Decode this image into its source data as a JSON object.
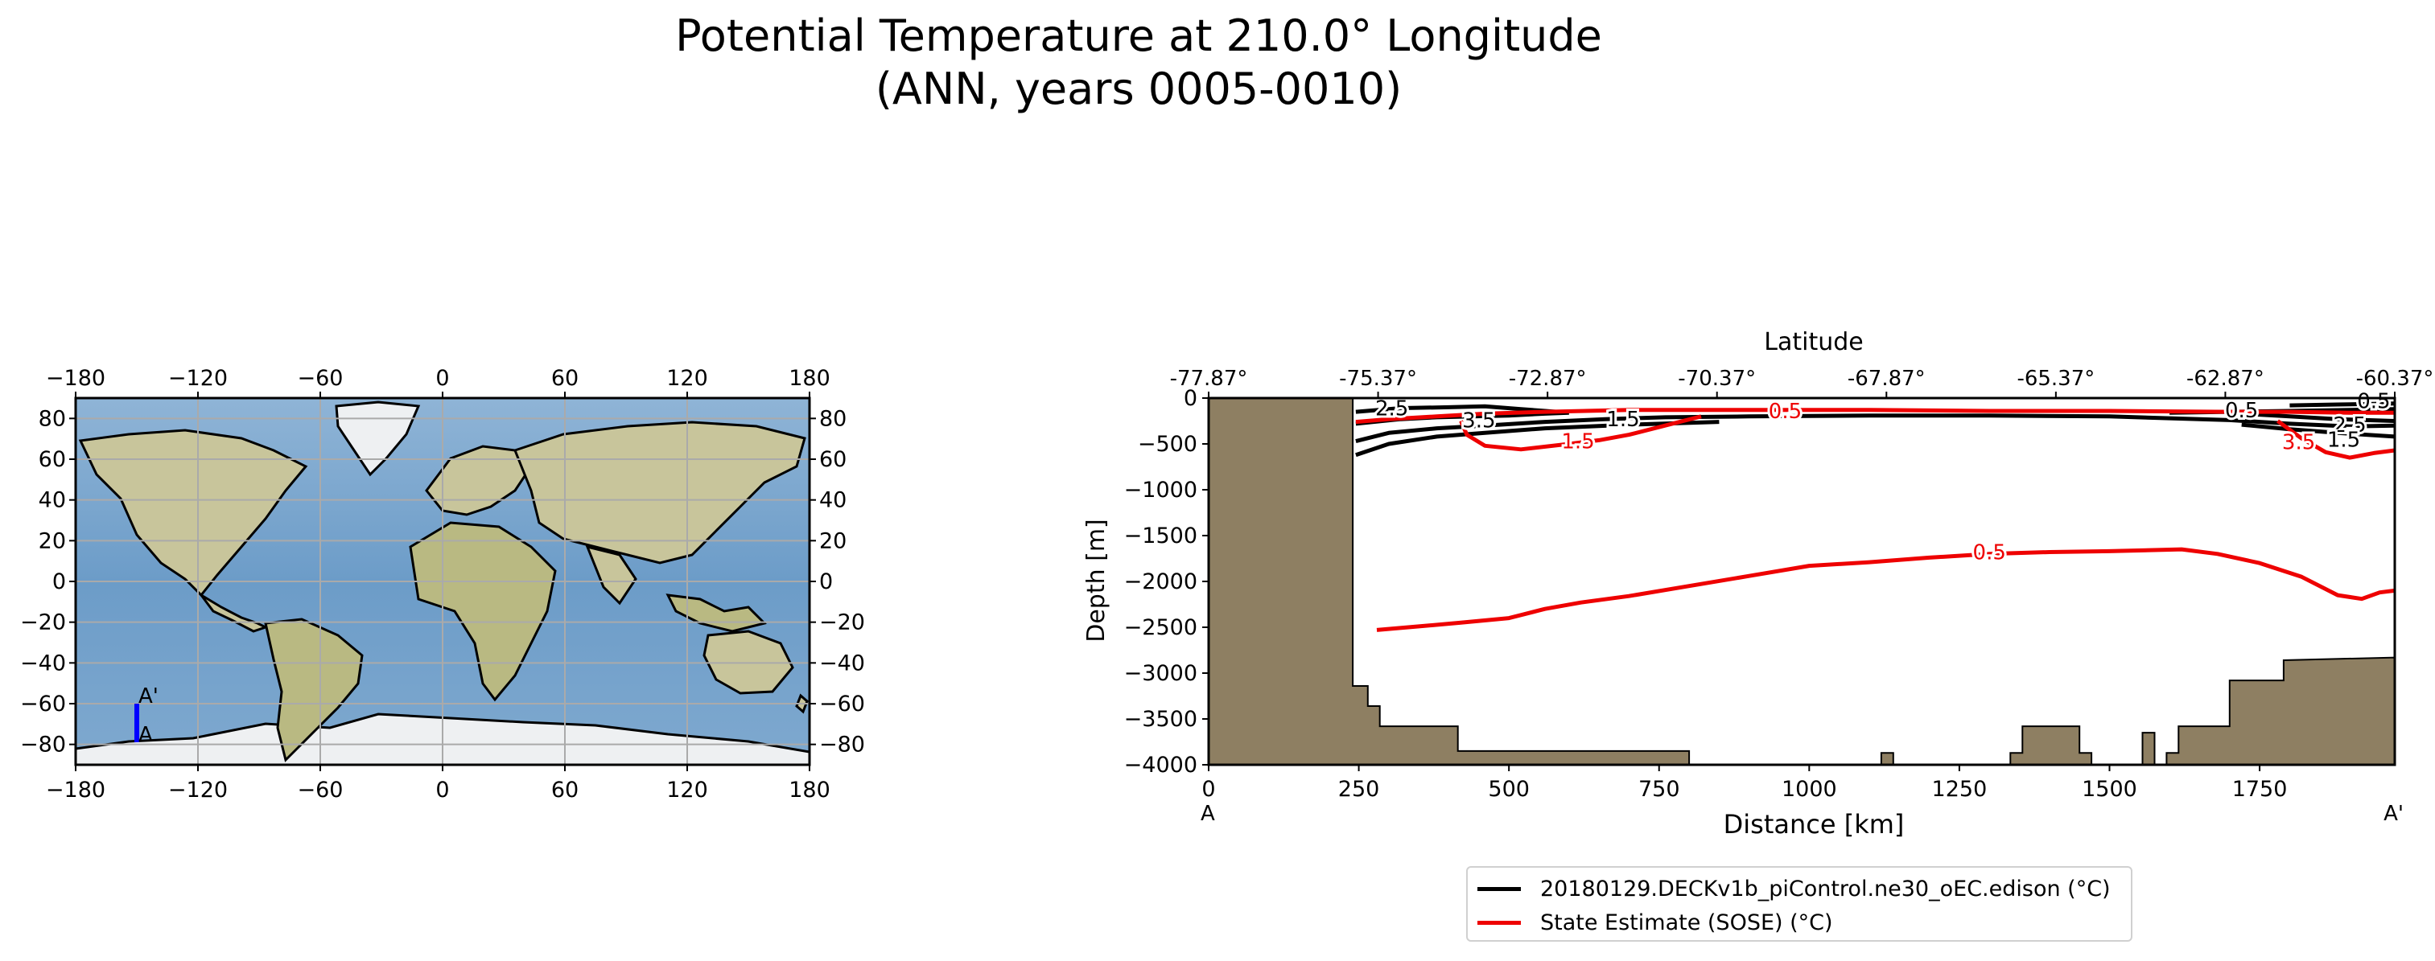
{
  "title": {
    "line1": "Potential Temperature at 210.0° Longitude",
    "line2": "(ANN, years 0005-0010)"
  },
  "colors": {
    "model": "#000000",
    "observations": "#ee0000",
    "land": "#8e7f62",
    "section_line": "#0000ff"
  },
  "map": {
    "x_ticks": [
      -180,
      -120,
      -60,
      0,
      60,
      120,
      180
    ],
    "y_ticks": [
      80,
      60,
      40,
      20,
      0,
      -20,
      -40,
      -60,
      -80
    ],
    "section_start_label": "A",
    "section_end_label": "A'"
  },
  "chart_data": {
    "type": "line",
    "subtype": "contour-transect",
    "xlabel": "Distance [km]",
    "ylabel": "Depth [m]",
    "top_axis_label": "Latitude",
    "xlim": [
      0,
      1975
    ],
    "ylim": [
      -4000,
      0
    ],
    "x_ticks": [
      0,
      250,
      500,
      750,
      1000,
      1250,
      1500,
      1750
    ],
    "y_ticks": [
      0,
      -500,
      -1000,
      -1500,
      -2000,
      -2500,
      -3000,
      -3500,
      -4000
    ],
    "latitude_ticks": [
      "-77.87°",
      "-75.37°",
      "-72.87°",
      "-70.37°",
      "-67.87°",
      "-65.37°",
      "-62.87°",
      "-60.37°"
    ],
    "start_label": "A",
    "end_label": "A'",
    "series": [
      {
        "name": "20180129.DECKv1b_piControl.ne30_oEC.edison (°C)",
        "color": "#000000",
        "contours": [
          {
            "level": "2.5",
            "points": [
              [
                245,
                -150
              ],
              [
                320,
                -110
              ],
              [
                400,
                -100
              ],
              [
                460,
                -90
              ],
              [
                520,
                -120
              ],
              [
                580,
                -150
              ]
            ]
          },
          {
            "level": "3.5",
            "points": [
              [
                245,
                -280
              ],
              [
                320,
                -230
              ],
              [
                380,
                -210
              ],
              [
                440,
                -200
              ],
              [
                500,
                -190
              ],
              [
                560,
                -170
              ],
              [
                600,
                -160
              ]
            ]
          },
          {
            "level": "1.5",
            "points": [
              [
                245,
                -470
              ],
              [
                300,
                -380
              ],
              [
                380,
                -330
              ],
              [
                460,
                -300
              ],
              [
                560,
                -260
              ],
              [
                660,
                -230
              ],
              [
                760,
                -210
              ],
              [
                900,
                -200
              ],
              [
                1100,
                -190
              ],
              [
                1300,
                -190
              ],
              [
                1500,
                -200
              ],
              [
                1600,
                -220
              ],
              [
                1700,
                -240
              ],
              [
                1800,
                -280
              ],
              [
                1900,
                -310
              ],
              [
                1975,
                -300
              ]
            ]
          },
          {
            "level": "1.5b",
            "points": [
              [
                245,
                -620
              ],
              [
                300,
                -500
              ],
              [
                380,
                -420
              ],
              [
                460,
                -380
              ],
              [
                560,
                -330
              ],
              [
                700,
                -290
              ],
              [
                850,
                -260
              ]
            ]
          },
          {
            "level": "0.5",
            "points": [
              [
                1600,
                -160
              ],
              [
                1700,
                -150
              ],
              [
                1800,
                -140
              ],
              [
                1900,
                -130
              ],
              [
                1975,
                -120
              ]
            ]
          },
          {
            "level": "2.5b",
            "points": [
              [
                1720,
                -170
              ],
              [
                1800,
                -200
              ],
              [
                1880,
                -230
              ],
              [
                1975,
                -250
              ]
            ]
          },
          {
            "level": "1.5c",
            "points": [
              [
                1720,
                -290
              ],
              [
                1800,
                -340
              ],
              [
                1880,
                -380
              ],
              [
                1975,
                -420
              ]
            ]
          },
          {
            "level": "0.5b",
            "points": [
              [
                1800,
                -80
              ],
              [
                1880,
                -70
              ],
              [
                1975,
                -60
              ]
            ]
          }
        ]
      },
      {
        "name": "State Estimate (SOSE) (°C)",
        "color": "#ee0000",
        "contours": [
          {
            "level": "0.5",
            "points": [
              [
                280,
                -2530
              ],
              [
                350,
                -2490
              ],
              [
                420,
                -2450
              ],
              [
                500,
                -2400
              ],
              [
                560,
                -2300
              ],
              [
                620,
                -2230
              ],
              [
                700,
                -2160
              ],
              [
                800,
                -2050
              ],
              [
                900,
                -1940
              ],
              [
                1000,
                -1830
              ],
              [
                1100,
                -1790
              ],
              [
                1200,
                -1740
              ],
              [
                1300,
                -1700
              ],
              [
                1400,
                -1680
              ],
              [
                1500,
                -1670
              ],
              [
                1620,
                -1650
              ],
              [
                1680,
                -1700
              ],
              [
                1750,
                -1800
              ],
              [
                1820,
                -1950
              ],
              [
                1880,
                -2150
              ],
              [
                1920,
                -2190
              ],
              [
                1950,
                -2120
              ],
              [
                1975,
                -2100
              ]
            ]
          },
          {
            "level": "0.5s",
            "points": [
              [
                245,
                -260
              ],
              [
                300,
                -230
              ],
              [
                380,
                -200
              ],
              [
                460,
                -170
              ],
              [
                560,
                -150
              ],
              [
                700,
                -130
              ],
              [
                900,
                -130
              ],
              [
                1100,
                -130
              ],
              [
                1300,
                -140
              ],
              [
                1500,
                -140
              ],
              [
                1700,
                -150
              ],
              [
                1800,
                -150
              ],
              [
                1900,
                -160
              ],
              [
                1975,
                -160
              ]
            ]
          },
          {
            "level": "1.5",
            "points": [
              [
                420,
                -250
              ],
              [
                430,
                -400
              ],
              [
                460,
                -520
              ],
              [
                520,
                -560
              ],
              [
                600,
                -500
              ],
              [
                650,
                -460
              ],
              [
                700,
                -400
              ],
              [
                760,
                -300
              ],
              [
                820,
                -200
              ]
            ]
          },
          {
            "level": "3.5",
            "points": [
              [
                1780,
                -250
              ],
              [
                1820,
                -440
              ],
              [
                1860,
                -590
              ],
              [
                1900,
                -650
              ],
              [
                1940,
                -600
              ],
              [
                1975,
                -570
              ]
            ]
          }
        ]
      }
    ],
    "contour_labels": [
      {
        "text": "2.5",
        "x": 305,
        "y": -110,
        "color": "#000000"
      },
      {
        "text": "3.5",
        "x": 450,
        "y": -240,
        "color": "#000000"
      },
      {
        "text": "1.5",
        "x": 690,
        "y": -230,
        "color": "#000000"
      },
      {
        "text": "0.5",
        "x": 1720,
        "y": -130,
        "color": "#000000"
      },
      {
        "text": "2.5",
        "x": 1900,
        "y": -290,
        "color": "#000000"
      },
      {
        "text": "1.5",
        "x": 1890,
        "y": -450,
        "color": "#000000"
      },
      {
        "text": "0.5",
        "x": 1940,
        "y": -30,
        "color": "#000000"
      },
      {
        "text": "0.5",
        "x": 960,
        "y": -140,
        "color": "#ee0000"
      },
      {
        "text": "1.5",
        "x": 615,
        "y": -470,
        "color": "#ee0000"
      },
      {
        "text": "0.5",
        "x": 1300,
        "y": -1680,
        "color": "#ee0000"
      },
      {
        "text": "3.5",
        "x": 1815,
        "y": -480,
        "color": "#ee0000"
      }
    ],
    "bathymetry": [
      [
        0,
        0
      ],
      [
        240,
        0
      ],
      [
        240,
        -3140
      ],
      [
        265,
        -3140
      ],
      [
        265,
        -3360
      ],
      [
        285,
        -3360
      ],
      [
        285,
        -3580
      ],
      [
        415,
        -3580
      ],
      [
        415,
        -3850
      ],
      [
        800,
        -3850
      ],
      [
        800,
        -4000
      ],
      [
        1120,
        -4000
      ],
      [
        1120,
        -3870
      ],
      [
        1140,
        -3870
      ],
      [
        1140,
        -4000
      ],
      [
        1335,
        -4000
      ],
      [
        1335,
        -3870
      ],
      [
        1355,
        -3870
      ],
      [
        1355,
        -3580
      ],
      [
        1450,
        -3580
      ],
      [
        1450,
        -3870
      ],
      [
        1470,
        -3870
      ],
      [
        1470,
        -4000
      ],
      [
        1555,
        -4000
      ],
      [
        1555,
        -3650
      ],
      [
        1575,
        -3650
      ],
      [
        1575,
        -4000
      ],
      [
        1595,
        -4000
      ],
      [
        1595,
        -3870
      ],
      [
        1615,
        -3870
      ],
      [
        1615,
        -3580
      ],
      [
        1700,
        -3580
      ],
      [
        1700,
        -3080
      ],
      [
        1790,
        -3080
      ],
      [
        1790,
        -2860
      ],
      [
        1975,
        -2830
      ],
      [
        1975,
        -4000
      ],
      [
        0,
        -4000
      ]
    ]
  },
  "legend": [
    {
      "label": "20180129.DECKv1b_piControl.ne30_oEC.edison (°C)",
      "color": "#000000"
    },
    {
      "label": "State Estimate (SOSE) (°C)",
      "color": "#ee0000"
    }
  ]
}
